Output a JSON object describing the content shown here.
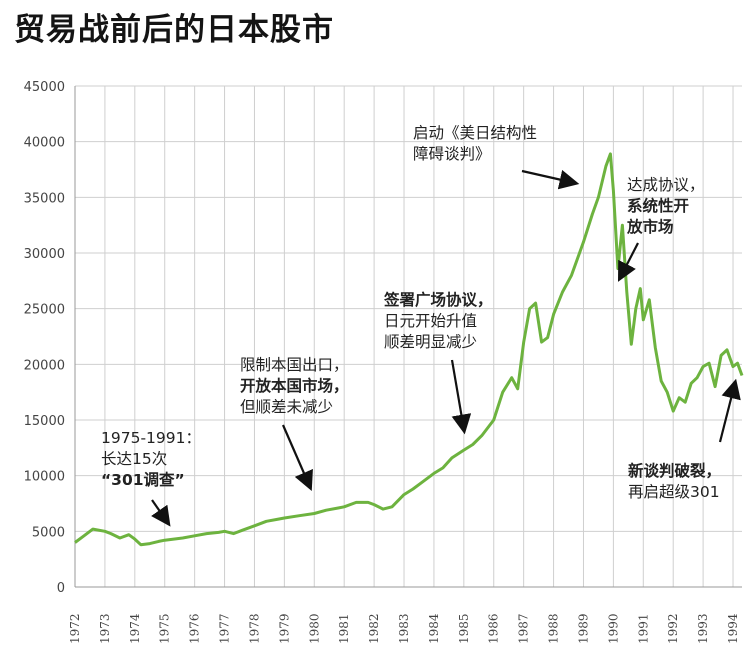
{
  "page": {
    "title": "贸易战前后的日本股市"
  },
  "chart_data": {
    "type": "line",
    "title": "贸易战前后的日本股市",
    "xlabel": "",
    "ylabel": "",
    "xlim": [
      1972,
      1994.3
    ],
    "ylim": [
      0,
      45000
    ],
    "y_ticks": [
      0,
      5000,
      10000,
      15000,
      20000,
      25000,
      30000,
      35000,
      40000,
      45000
    ],
    "x_ticks": [
      "1972",
      "1973",
      "1974",
      "1975",
      "1976",
      "1977",
      "1978",
      "1979",
      "1980",
      "1981",
      "1982",
      "1983",
      "1984",
      "1985",
      "1986",
      "1987",
      "1988",
      "1989",
      "1990",
      "1991",
      "1992",
      "1993",
      "1994"
    ],
    "grid": true,
    "line_color": "#6db33f",
    "series": [
      {
        "x": [
          1972.0,
          1972.3,
          1972.6,
          1973.0,
          1973.2,
          1973.5,
          1973.8,
          1974.0,
          1974.2,
          1974.5,
          1974.8,
          1975.0,
          1975.3,
          1975.6,
          1976.0,
          1976.4,
          1976.8,
          1977.0,
          1977.3,
          1977.6,
          1978.0,
          1978.4,
          1978.8,
          1979.0,
          1979.5,
          1980.0,
          1980.4,
          1980.8,
          1981.0,
          1981.4,
          1981.8,
          1982.0,
          1982.3,
          1982.6,
          1983.0,
          1983.3,
          1983.6,
          1984.0,
          1984.3,
          1984.6,
          1985.0,
          1985.3,
          1985.6,
          1986.0,
          1986.3,
          1986.6,
          1986.8,
          1987.0,
          1987.2,
          1987.4,
          1987.6,
          1987.8,
          1988.0,
          1988.3,
          1988.6,
          1989.0,
          1989.3,
          1989.5,
          1989.75,
          1989.9,
          1990.0,
          1990.15,
          1990.3,
          1990.45,
          1990.6,
          1990.75,
          1990.9,
          1991.0,
          1991.2,
          1991.4,
          1991.6,
          1991.8,
          1992.0,
          1992.2,
          1992.4,
          1992.6,
          1992.8,
          1993.0,
          1993.2,
          1993.4,
          1993.6,
          1993.8,
          1994.0,
          1994.15,
          1994.3
        ],
        "values": [
          4000,
          4600,
          5200,
          5000,
          4800,
          4400,
          4700,
          4300,
          3800,
          3900,
          4100,
          4200,
          4300,
          4400,
          4600,
          4800,
          4900,
          5000,
          4800,
          5100,
          5500,
          5900,
          6100,
          6200,
          6400,
          6600,
          6900,
          7100,
          7200,
          7600,
          7600,
          7400,
          7000,
          7200,
          8300,
          8800,
          9400,
          10200,
          10700,
          11600,
          12300,
          12800,
          13600,
          15000,
          17500,
          18800,
          17800,
          22000,
          25000,
          25500,
          22000,
          22400,
          24500,
          26500,
          28000,
          31000,
          33500,
          35000,
          37800,
          38900,
          35600,
          28600,
          32500,
          26500,
          21800,
          25000,
          26800,
          24000,
          25800,
          21500,
          18500,
          17500,
          15800,
          17000,
          16600,
          18300,
          18800,
          19800,
          20100,
          18000,
          20800,
          21300,
          19800,
          20100,
          19000
        ]
      }
    ]
  },
  "annotations": {
    "a1": {
      "line1": "1975-1991：",
      "line2": "长达15次",
      "line3": "“301调查”"
    },
    "a2": {
      "line1": "限制本国出口，",
      "line2": "开放本国市场，",
      "line3": "但顺差未减少"
    },
    "a3": {
      "line1": "签署广场协议，",
      "line2": "日元开始升值",
      "line3": "顺差明显减少"
    },
    "a4": {
      "line1": "启动《美日结构性",
      "line2": "障碍谈判》"
    },
    "a5": {
      "line1": "达成协议，",
      "line2": "系统性开",
      "line3": "放市场"
    },
    "a6": {
      "line1": "新谈判破裂，",
      "line2": "再启超级301"
    }
  }
}
